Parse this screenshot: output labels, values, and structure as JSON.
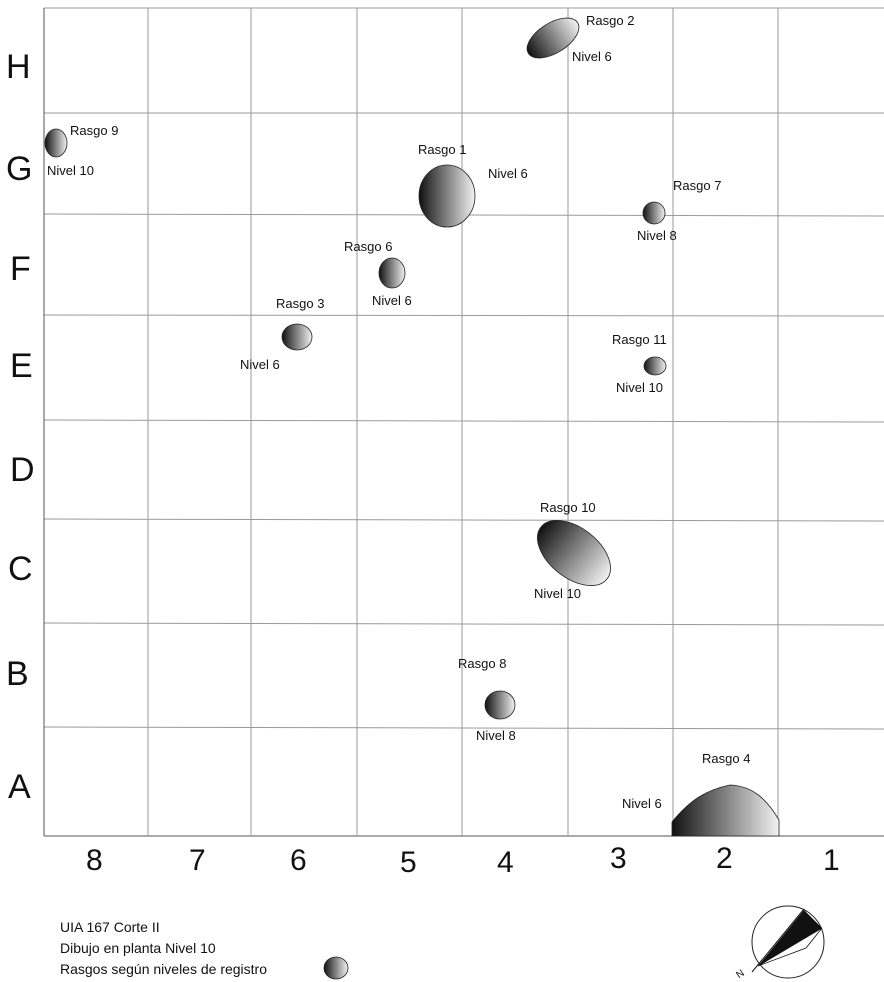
{
  "grid": {
    "rows": [
      "H",
      "G",
      "F",
      "E",
      "D",
      "C",
      "B",
      "A"
    ],
    "columns": [
      "8",
      "7",
      "6",
      "5",
      "4",
      "3",
      "2",
      "1"
    ]
  },
  "features": [
    {
      "id": "rasgo-2",
      "name": "Rasgo 2",
      "level": "Nivel 6"
    },
    {
      "id": "rasgo-9",
      "name": "Rasgo 9",
      "level": "Nivel 10"
    },
    {
      "id": "rasgo-1",
      "name": "Rasgo 1",
      "level": "Nivel 6"
    },
    {
      "id": "rasgo-7",
      "name": "Rasgo 7",
      "level": "Nivel 8"
    },
    {
      "id": "rasgo-6",
      "name": "Rasgo 6",
      "level": "Nivel 6"
    },
    {
      "id": "rasgo-3",
      "name": "Rasgo 3",
      "level": "Nivel 6"
    },
    {
      "id": "rasgo-11",
      "name": "Rasgo 11",
      "level": "Nivel 10"
    },
    {
      "id": "rasgo-10",
      "name": "Rasgo 10",
      "level": "Nivel 10"
    },
    {
      "id": "rasgo-8",
      "name": "Rasgo 8",
      "level": "Nivel 8"
    },
    {
      "id": "rasgo-4",
      "name": "Rasgo 4",
      "level": "Nivel 6"
    }
  ],
  "legend": {
    "line1": "UIA 167 Corte II",
    "line2": "Dibujo en planta  Nivel  10",
    "line3": "Rasgos según niveles de registro"
  },
  "north": {
    "letter": "N"
  }
}
